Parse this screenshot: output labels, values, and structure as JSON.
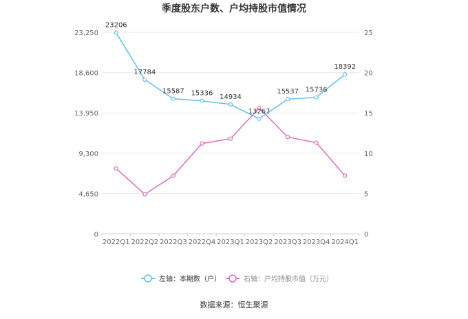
{
  "chart_data": {
    "type": "line",
    "title": "季度股东户数、户均持股市值情况",
    "categories": [
      "2022Q1",
      "2022Q2",
      "2022Q3",
      "2022Q4",
      "2023Q1",
      "2023Q2",
      "2023Q3",
      "2023Q4",
      "2024Q1"
    ],
    "left_axis": {
      "ticks": [
        "0",
        "4,650",
        "9,300",
        "13,950",
        "18,600",
        "23,250"
      ],
      "tick_values": [
        0,
        4650,
        9300,
        13950,
        18600,
        23250
      ],
      "ylim": [
        0,
        23250
      ]
    },
    "right_axis": {
      "ticks": [
        "0",
        "5",
        "10",
        "15",
        "20",
        "25"
      ],
      "tick_values": [
        0,
        5,
        10,
        15,
        20,
        25
      ],
      "ylim": [
        0,
        25
      ]
    },
    "series": [
      {
        "name": "左轴：本期数（户）",
        "axis": "left",
        "color": "#5bc0eb",
        "values": [
          23206,
          17784,
          15587,
          15336,
          14934,
          13267,
          15537,
          15736,
          18392
        ],
        "labels": [
          "23206",
          "17784",
          "15587",
          "15336",
          "14934",
          "13267",
          "15537",
          "15736",
          "18392"
        ]
      },
      {
        "name": "右轴：户均持股市值（万元）",
        "axis": "right",
        "color": "#d96bbd",
        "values": [
          8.1,
          4.9,
          7.2,
          11.2,
          11.8,
          15.6,
          12.0,
          11.3,
          7.2
        ]
      }
    ],
    "grid": true,
    "legend": "bottom"
  },
  "source": "数据来源：恒生聚源"
}
